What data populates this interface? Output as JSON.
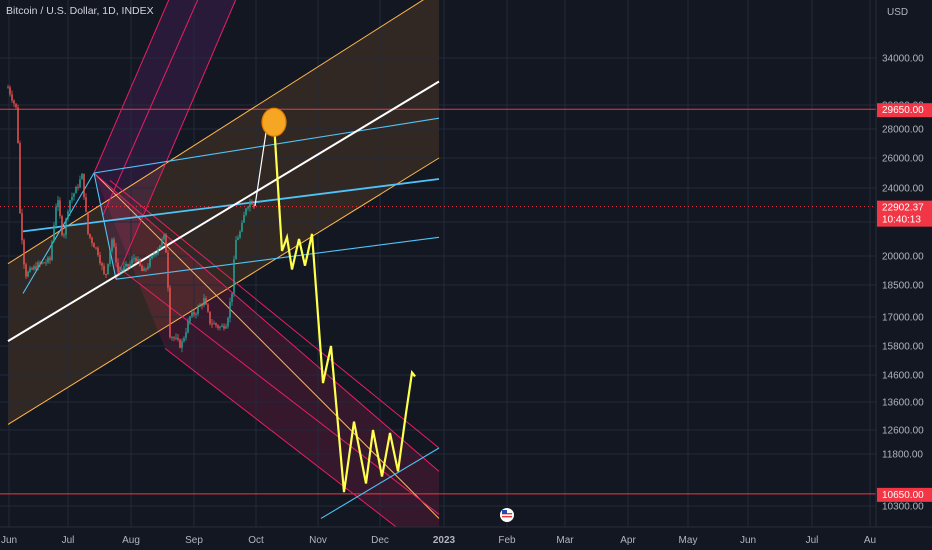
{
  "chart_title": "Bitcoin / U.S. Dollar, 1D, INDEX",
  "colors": {
    "background": "#131722",
    "bull": "#26a69a",
    "bear": "#ef5350",
    "white_line": "#ffffff",
    "blue_line": "#4fc3f7",
    "pink_line": "#e91e63",
    "orange_line": "#ffb74d",
    "projection": "#ffff4d",
    "level_line": "#f23645",
    "marker": "#f5a623"
  },
  "chart_data": {
    "type": "candlestick",
    "title": "Bitcoin / U.S. Dollar, 1D, INDEX",
    "currency_label": "USD",
    "y_axis_ticks": [
      34000,
      30000,
      28000,
      26000,
      24000,
      22000,
      20000,
      18500,
      17000,
      15800,
      14600,
      13600,
      12600,
      11800,
      10300
    ],
    "x_axis_ticks": [
      "Jun",
      "Jul",
      "Aug",
      "Sep",
      "Oct",
      "Nov",
      "Dec",
      "2023",
      "Feb",
      "Mar",
      "Apr",
      "May",
      "Jun",
      "Jul",
      "Au"
    ],
    "price_labels": {
      "upper_level": "29650.00",
      "current_price": "22902.37",
      "countdown": "10:40:13",
      "lower_level": "10650.00"
    },
    "horizontal_levels": [
      29650,
      10650
    ],
    "current_price": 22902.37,
    "price_path": [
      [
        "2022-06-01",
        31500
      ],
      [
        "2022-06-10",
        29500
      ],
      [
        "2022-06-13",
        22500
      ],
      [
        "2022-06-18",
        19000
      ],
      [
        "2022-06-30",
        19500
      ],
      [
        "2022-07-13",
        19800
      ],
      [
        "2022-07-20",
        23500
      ],
      [
        "2022-07-26",
        21000
      ],
      [
        "2022-08-01",
        23200
      ],
      [
        "2022-08-08",
        23900
      ],
      [
        "2022-08-14",
        24800
      ],
      [
        "2022-08-20",
        21300
      ],
      [
        "2022-08-30",
        20200
      ],
      [
        "2022-09-06",
        18800
      ],
      [
        "2022-09-13",
        21000
      ],
      [
        "2022-09-19",
        19200
      ],
      [
        "2022-09-30",
        19500
      ],
      [
        "2022-10-06",
        20000
      ],
      [
        "2022-10-14",
        19100
      ],
      [
        "2022-10-25",
        20100
      ],
      [
        "2022-11-05",
        21200
      ],
      [
        "2022-11-08",
        18500
      ],
      [
        "2022-11-10",
        16300
      ],
      [
        "2022-11-21",
        15800
      ],
      [
        "2022-11-30",
        17000
      ],
      [
        "2022-12-05",
        17200
      ],
      [
        "2022-12-14",
        17800
      ],
      [
        "2022-12-20",
        16800
      ],
      [
        "2022-12-31",
        16550
      ],
      [
        "2023-01-06",
        16800
      ],
      [
        "2023-01-12",
        18500
      ],
      [
        "2023-01-14",
        20800
      ],
      [
        "2023-01-20",
        21500
      ],
      [
        "2023-01-25",
        22900
      ],
      [
        "2023-01-30",
        23300
      ],
      [
        "2023-02-03",
        22900
      ]
    ],
    "projection_path": [
      [
        "2023-02-22",
        28500
      ],
      [
        "2023-03-02",
        20300
      ],
      [
        "2023-03-07",
        21100
      ],
      [
        "2023-03-12",
        19300
      ],
      [
        "2023-03-19",
        21000
      ],
      [
        "2023-03-25",
        19500
      ],
      [
        "2023-04-01",
        21300
      ],
      [
        "2023-04-12",
        14300
      ],
      [
        "2023-04-20",
        15800
      ],
      [
        "2023-05-03",
        10700
      ],
      [
        "2023-05-13",
        12900
      ],
      [
        "2023-05-25",
        10950
      ],
      [
        "2023-06-01",
        12600
      ],
      [
        "2023-06-10",
        11150
      ],
      [
        "2023-06-18",
        12500
      ],
      [
        "2023-06-26",
        11300
      ],
      [
        "2023-07-04",
        13200
      ],
      [
        "2023-07-10",
        14700
      ],
      [
        "2023-07-13",
        14550
      ]
    ],
    "white_arrow": [
      [
        "2023-02-03",
        22950
      ],
      [
        "2023-02-17",
        29400
      ]
    ],
    "target_marker": [
      "2023-02-22",
      29400
    ],
    "trendlines": {
      "white": [
        [
          "2022-06-01",
          16000
        ],
        [
          "2023-08-06",
          32000
        ]
      ],
      "orange": [
        [
          [
            "2022-06-01",
            19600
          ],
          [
            "2023-08-06",
            37000
          ]
        ],
        [
          [
            "2022-06-01",
            12800
          ],
          [
            "2023-08-06",
            26000
          ]
        ],
        [
          [
            "2022-08-26",
            25000
          ],
          [
            "2023-08-06",
            10000
          ]
        ]
      ],
      "blue": [
        [
          [
            "2022-08-26",
            25000
          ],
          [
            "2023-08-06",
            28900
          ]
        ],
        [
          [
            "2022-06-16",
            21450
          ],
          [
            "2023-08-06",
            24600
          ]
        ],
        [
          [
            "2022-09-17",
            18800
          ],
          [
            "2023-08-06",
            21100
          ]
        ],
        [
          [
            "2022-06-16",
            18100
          ],
          [
            "2022-08-26",
            25000
          ]
        ],
        [
          [
            "2022-08-26",
            25000
          ],
          [
            "2022-09-17",
            18800
          ]
        ],
        [
          [
            "2023-04-10",
            10000
          ],
          [
            "2023-08-06",
            12000
          ]
        ]
      ],
      "pink_upper_channel": [
        [
          [
            "2022-08-26",
            25000
          ],
          [
            "2023-03-01",
            48000
          ]
        ],
        [
          [
            "2022-09-17",
            18800
          ],
          [
            "2023-05-06",
            48000
          ]
        ],
        [
          [
            "2022-09-04",
            22400
          ],
          [
            "2023-04-01",
            48000
          ]
        ]
      ],
      "pink_lower_channel": [
        [
          [
            "2022-08-26",
            25000
          ],
          [
            "2023-08-06",
            11300
          ]
        ],
        [
          [
            "2022-09-11",
            24500
          ],
          [
            "2023-08-06",
            12000
          ]
        ],
        [
          [
            "2022-11-05",
            15700
          ],
          [
            "2023-08-06",
            9000
          ]
        ],
        [
          [
            "2022-09-17",
            19500
          ],
          [
            "2023-08-06",
            10100
          ]
        ]
      ]
    }
  }
}
